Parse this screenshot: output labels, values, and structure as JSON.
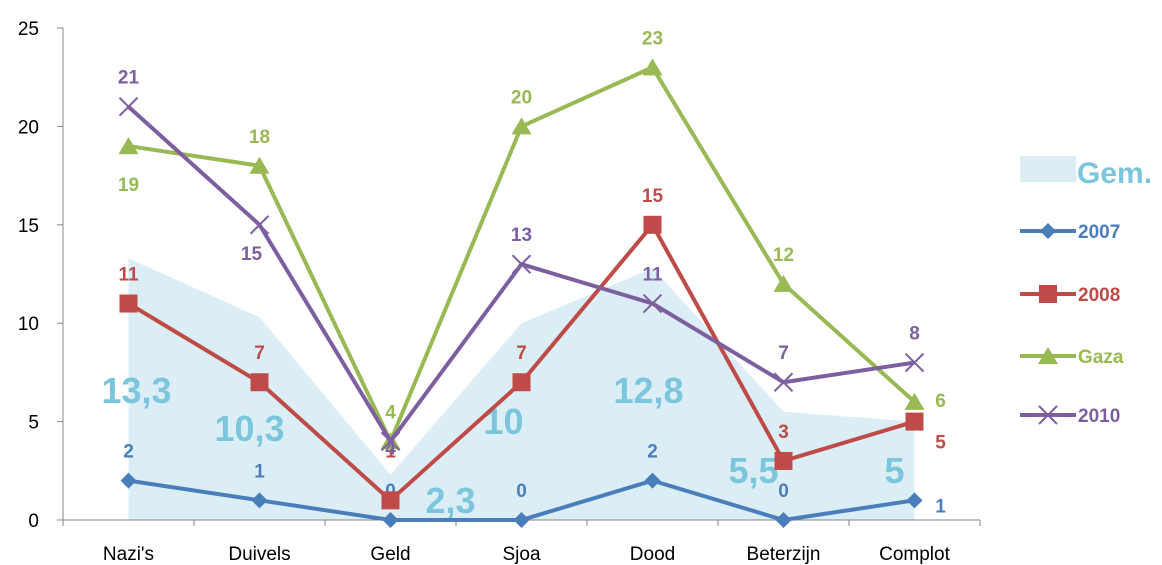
{
  "chart_data": {
    "type": "line",
    "categories": [
      "Nazi's",
      "Duivels",
      "Geld",
      "Sjoa",
      "Dood",
      "Beterzijn",
      "Complot"
    ],
    "ylim": [
      0,
      25
    ],
    "yticks": [
      0,
      5,
      10,
      15,
      20,
      25
    ],
    "grid": false,
    "legend_position": "right",
    "area_series": {
      "name": "Gem.",
      "values": [
        13.3,
        10.3,
        2.3,
        10,
        12.8,
        5.5,
        5
      ],
      "labels": [
        "13,3",
        "10,3",
        "2,3",
        "10",
        "12,8",
        "5,5",
        "5"
      ],
      "color": "#dbeef5",
      "label_color": "#7cc6dd"
    },
    "series": [
      {
        "name": "2007",
        "values": [
          2,
          1,
          0,
          0,
          2,
          0,
          1
        ],
        "color": "#4a7ebb",
        "marker": "diamond"
      },
      {
        "name": "2008",
        "values": [
          11,
          7,
          1,
          7,
          15,
          3,
          5
        ],
        "color": "#be4b48",
        "marker": "square"
      },
      {
        "name": "Gaza",
        "values": [
          19,
          18,
          4,
          20,
          23,
          12,
          6
        ],
        "color": "#98b954",
        "marker": "triangle"
      },
      {
        "name": "2010",
        "values": [
          21,
          15,
          4,
          13,
          11,
          7,
          8
        ],
        "color": "#7d5fa0",
        "marker": "x"
      }
    ]
  }
}
